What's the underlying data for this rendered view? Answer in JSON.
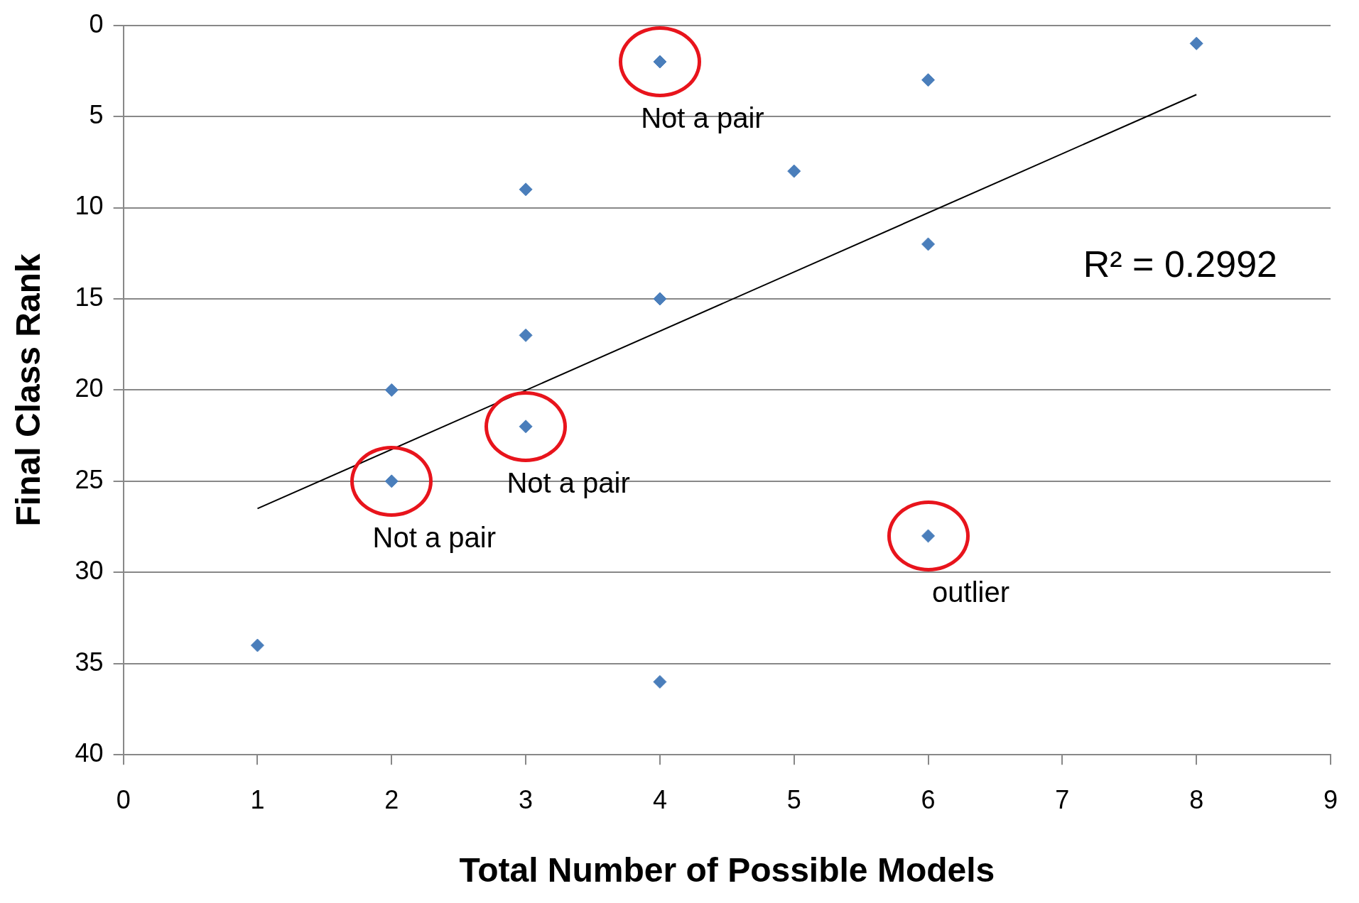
{
  "chart_data": {
    "type": "scatter",
    "xlabel": "Total Number of Possible Models",
    "ylabel": "Final Class Rank",
    "xlim": [
      0,
      9
    ],
    "xticks": [
      0,
      1,
      2,
      3,
      4,
      5,
      6,
      7,
      8,
      9
    ],
    "ylim": [
      40,
      0
    ],
    "yticks": [
      0,
      5,
      10,
      15,
      20,
      25,
      30,
      35,
      40
    ],
    "grid": "y",
    "legend": false,
    "marker": "diamond",
    "series": [
      {
        "type": "scatter",
        "color": "#4a7ebb",
        "x": [
          1,
          2,
          2,
          3,
          3,
          3,
          4,
          4,
          4,
          5,
          6,
          6,
          6,
          8
        ],
        "values": [
          34,
          20,
          25,
          9,
          17,
          22,
          2,
          15,
          36,
          8,
          3,
          12,
          28,
          1
        ]
      },
      {
        "type": "line",
        "color": "#000000",
        "marker": "none",
        "x": [
          1,
          8
        ],
        "values": [
          26.5,
          3.8
        ]
      }
    ],
    "annotations": [
      {
        "text": "Not a pair",
        "x": 4,
        "y": 2
      },
      {
        "text": "Not a pair",
        "x": 3,
        "y": 22
      },
      {
        "text": "Not a pair",
        "x": 2,
        "y": 25
      },
      {
        "text": "outlier",
        "x": 6,
        "y": 28
      },
      "R² = 0.2992"
    ]
  }
}
